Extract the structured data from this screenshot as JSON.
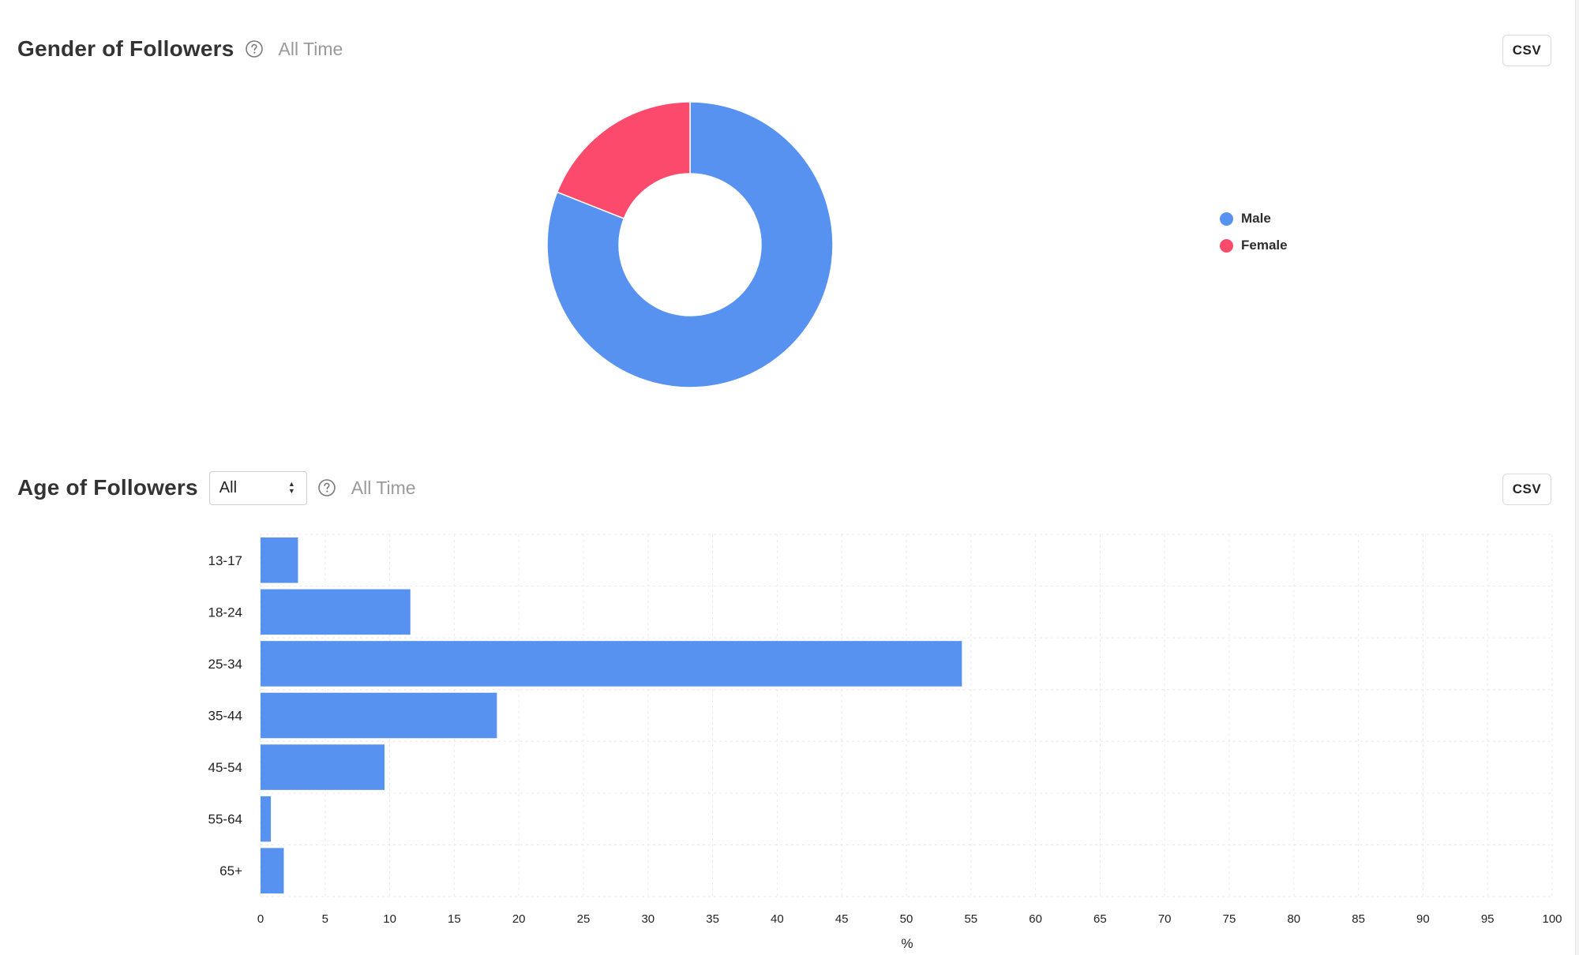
{
  "gender_section": {
    "title": "Gender of Followers",
    "range": "All Time",
    "csv_label": "CSV"
  },
  "age_section": {
    "title": "Age of Followers",
    "filter_value": "All",
    "range": "All Time",
    "csv_label": "CSV"
  },
  "colors": {
    "male": "#5892f0",
    "female": "#fb4a6b",
    "bar": "#5892f0"
  },
  "chart_data": [
    {
      "type": "pie",
      "subtype": "donut",
      "title": "Gender of Followers",
      "series": [
        {
          "name": "Male",
          "value": 81,
          "color": "#5892f0"
        },
        {
          "name": "Female",
          "value": 19,
          "color": "#fb4a6b"
        }
      ],
      "legend": [
        "Male",
        "Female"
      ],
      "legend_position": "right"
    },
    {
      "type": "bar",
      "orientation": "horizontal",
      "title": "Age of Followers",
      "categories": [
        "13-17",
        "18-24",
        "25-34",
        "35-44",
        "45-54",
        "55-64",
        "65+"
      ],
      "values": [
        2.9,
        11.6,
        54.3,
        18.3,
        9.6,
        0.8,
        1.8
      ],
      "xlabel": "%",
      "ylabel": "",
      "xlim": [
        0,
        100
      ],
      "xticks": [
        "0",
        "5",
        "10",
        "15",
        "20",
        "25",
        "30",
        "35",
        "40",
        "45",
        "50",
        "55",
        "60",
        "65",
        "70",
        "75",
        "80",
        "85",
        "90",
        "95",
        "100"
      ],
      "grid": true
    }
  ]
}
